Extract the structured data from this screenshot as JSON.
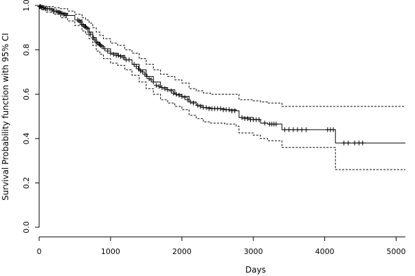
{
  "chart_data": {
    "type": "line",
    "xlabel": "Days",
    "ylabel": "Survival Probability function with 95% CI",
    "xlim": [
      0,
      5130
    ],
    "ylim": [
      -0.03,
      1.0
    ],
    "xticks": [
      "0",
      "1000",
      "2000",
      "3000",
      "4000",
      "5000"
    ],
    "yticks": [
      "0.0",
      "0.2",
      "0.4",
      "0.6",
      "0.8",
      "1.0"
    ],
    "grid": false,
    "legend": "none",
    "series": [
      {
        "role": "estimate",
        "style": "solid",
        "x": [
          0,
          50,
          100,
          200,
          300,
          400,
          500,
          600,
          650,
          700,
          750,
          800,
          850,
          900,
          1000,
          1100,
          1200,
          1300,
          1400,
          1500,
          1600,
          1700,
          1800,
          1900,
          2000,
          2100,
          2200,
          2300,
          2400,
          2600,
          2760,
          2800,
          3000,
          3100,
          3200,
          3400,
          4150,
          5130
        ],
        "y": [
          1.0,
          0.99,
          0.985,
          0.975,
          0.965,
          0.955,
          0.935,
          0.915,
          0.9,
          0.88,
          0.855,
          0.835,
          0.82,
          0.805,
          0.785,
          0.775,
          0.755,
          0.735,
          0.71,
          0.68,
          0.655,
          0.63,
          0.62,
          0.6,
          0.59,
          0.565,
          0.55,
          0.54,
          0.535,
          0.53,
          0.525,
          0.495,
          0.485,
          0.47,
          0.465,
          0.44,
          0.38,
          0.38
        ]
      },
      {
        "role": "upper-95-ci",
        "style": "dashed",
        "x": [
          0,
          50,
          100,
          200,
          300,
          400,
          500,
          600,
          650,
          700,
          750,
          800,
          850,
          900,
          1000,
          1100,
          1200,
          1300,
          1400,
          1500,
          1600,
          1700,
          1800,
          1900,
          2000,
          2100,
          2200,
          2300,
          2400,
          2600,
          2760,
          2800,
          3000,
          3100,
          3200,
          3400,
          4150,
          5130
        ],
        "y": [
          1.0,
          0.997,
          0.995,
          0.99,
          0.985,
          0.975,
          0.96,
          0.945,
          0.935,
          0.92,
          0.9,
          0.88,
          0.865,
          0.85,
          0.83,
          0.82,
          0.8,
          0.785,
          0.76,
          0.735,
          0.71,
          0.69,
          0.68,
          0.665,
          0.65,
          0.625,
          0.615,
          0.605,
          0.6,
          0.6,
          0.6,
          0.575,
          0.57,
          0.565,
          0.56,
          0.545,
          0.545,
          0.545
        ]
      },
      {
        "role": "lower-95-ci",
        "style": "dashed",
        "x": [
          0,
          50,
          100,
          200,
          300,
          400,
          500,
          600,
          650,
          700,
          750,
          800,
          850,
          900,
          1000,
          1100,
          1200,
          1300,
          1400,
          1500,
          1600,
          1700,
          1800,
          1900,
          2000,
          2100,
          2200,
          2300,
          2400,
          2600,
          2760,
          2800,
          3000,
          3100,
          3200,
          3400,
          4150,
          5130
        ],
        "y": [
          1.0,
          0.98,
          0.97,
          0.96,
          0.945,
          0.93,
          0.91,
          0.885,
          0.87,
          0.85,
          0.82,
          0.795,
          0.78,
          0.76,
          0.74,
          0.73,
          0.71,
          0.685,
          0.655,
          0.625,
          0.6,
          0.575,
          0.56,
          0.545,
          0.53,
          0.505,
          0.49,
          0.475,
          0.47,
          0.465,
          0.455,
          0.425,
          0.415,
          0.4,
          0.39,
          0.36,
          0.26,
          0.26
        ]
      }
    ],
    "censored": {
      "x": [
        10,
        20,
        35,
        55,
        70,
        90,
        120,
        150,
        180,
        210,
        240,
        260,
        280,
        300,
        320,
        340,
        360,
        380,
        540,
        560,
        580,
        600,
        620,
        640,
        660,
        680,
        700,
        720,
        760,
        780,
        800,
        820,
        840,
        860,
        880,
        920,
        960,
        1000,
        1040,
        1080,
        1110,
        1140,
        1180,
        1220,
        1260,
        1330,
        1360,
        1390,
        1420,
        1450,
        1480,
        1510,
        1540,
        1570,
        1600,
        1640,
        1680,
        1720,
        1760,
        1800,
        1850,
        1880,
        1920,
        1960,
        2000,
        2040,
        2080,
        2120,
        2160,
        2220,
        2260,
        2300,
        2340,
        2380,
        2420,
        2460,
        2500,
        2540,
        2580,
        2620,
        2660,
        2700,
        2740,
        2840,
        2880,
        2920,
        2960,
        3000,
        3040,
        3080,
        3160,
        3230,
        3260,
        3290,
        3320,
        3440,
        3500,
        3560,
        3620,
        3680,
        3740,
        4040,
        4080,
        4120,
        4270,
        4330,
        4420,
        4480,
        4530
      ],
      "y": [
        0.995,
        0.995,
        0.99,
        0.99,
        0.99,
        0.985,
        0.985,
        0.985,
        0.98,
        0.975,
        0.975,
        0.97,
        0.97,
        0.965,
        0.965,
        0.96,
        0.96,
        0.955,
        0.935,
        0.93,
        0.925,
        0.915,
        0.91,
        0.905,
        0.9,
        0.895,
        0.88,
        0.87,
        0.855,
        0.845,
        0.835,
        0.83,
        0.825,
        0.82,
        0.815,
        0.805,
        0.795,
        0.785,
        0.78,
        0.775,
        0.775,
        0.77,
        0.765,
        0.755,
        0.755,
        0.735,
        0.725,
        0.715,
        0.705,
        0.7,
        0.69,
        0.68,
        0.67,
        0.665,
        0.655,
        0.64,
        0.635,
        0.63,
        0.625,
        0.62,
        0.615,
        0.605,
        0.6,
        0.595,
        0.59,
        0.585,
        0.575,
        0.565,
        0.56,
        0.55,
        0.545,
        0.54,
        0.54,
        0.535,
        0.535,
        0.535,
        0.535,
        0.535,
        0.53,
        0.53,
        0.53,
        0.525,
        0.525,
        0.495,
        0.49,
        0.49,
        0.485,
        0.485,
        0.485,
        0.485,
        0.47,
        0.465,
        0.465,
        0.465,
        0.465,
        0.44,
        0.44,
        0.44,
        0.44,
        0.44,
        0.44,
        0.44,
        0.44,
        0.44,
        0.38,
        0.38,
        0.38,
        0.38,
        0.38
      ]
    }
  }
}
